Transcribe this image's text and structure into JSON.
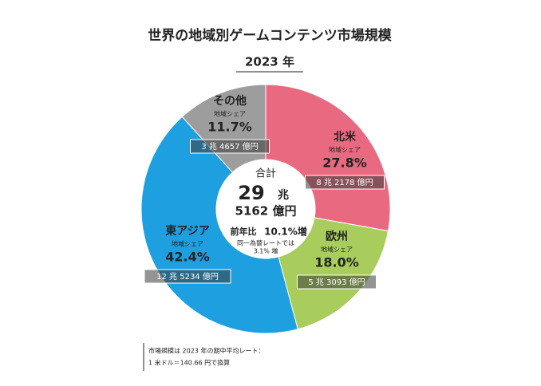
{
  "chart_data": {
    "type": "donut",
    "title": "世界の地域別ゲームコンテンツ市場規模",
    "subtitle": "2023 年",
    "categories": [
      "北米",
      "欧州",
      "東アジア",
      "その他"
    ],
    "values": [
      27.8,
      18.0,
      42.4,
      11.7
    ],
    "value_labels": [
      "27.8%",
      "18.0%",
      "42.4%",
      "11.7%"
    ],
    "colors": [
      "#e96a80",
      "#a9cd5c",
      "#1d9fe0",
      "#9d9d9d"
    ],
    "share_label": "地域シェア",
    "amount_labels": [
      "8 兆 2178 億円",
      "5 兆 3093 億円",
      "12 兆 5234 億円",
      "3 兆 4657 億円"
    ],
    "center": {
      "label": "合計",
      "trillion": "29",
      "trillion_unit": "兆",
      "rest": "5162 億円",
      "yoy_label": "前年比",
      "yoy": "10.1%増",
      "note1": "同一為替レートでは",
      "note2": "3.1% 増"
    },
    "footnote": [
      "市場規模は 2023 年の期中平均レート：",
      "1 米ドル＝140.66 円で換算"
    ]
  }
}
